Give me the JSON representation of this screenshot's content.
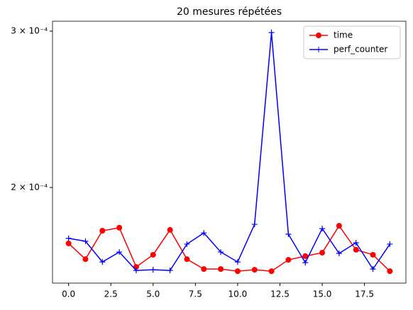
{
  "chart_data": {
    "type": "line",
    "title": "20 mesures répétées",
    "x": [
      0,
      1,
      2,
      3,
      4,
      5,
      6,
      7,
      8,
      9,
      10,
      11,
      12,
      13,
      14,
      15,
      16,
      17,
      18,
      19
    ],
    "series": [
      {
        "name": "time",
        "color": "#ff0000",
        "marker": "o",
        "values": [
          0.000173,
          0.0001661,
          0.0001788,
          0.0001802,
          0.0001628,
          0.000168,
          0.0001792,
          0.0001661,
          0.0001619,
          0.0001619,
          0.000161,
          0.0001616,
          0.000161,
          0.0001658,
          0.0001674,
          0.0001689,
          0.0001811,
          0.0001702,
          0.000168,
          0.000161
        ]
      },
      {
        "name": "perf_counter",
        "color": "#0000ff",
        "marker": "+",
        "values": [
          0.0001753,
          0.000174,
          0.0001649,
          0.0001692,
          0.0001613,
          0.0001616,
          0.0001613,
          0.0001727,
          0.0001778,
          0.0001692,
          0.0001649,
          0.0001818,
          0.0002989,
          0.0001772,
          0.0001646,
          0.0001798,
          0.0001686,
          0.0001733,
          0.0001619,
          0.0001727
        ]
      }
    ],
    "xlim": [
      -0.95,
      19.95
    ],
    "xticks": [
      {
        "value": 0,
        "label": "0.0"
      },
      {
        "value": 2.5,
        "label": "2.5"
      },
      {
        "value": 5,
        "label": "5.0"
      },
      {
        "value": 7.5,
        "label": "7.5"
      },
      {
        "value": 10,
        "label": "10.0"
      },
      {
        "value": 12.5,
        "label": "12.5"
      },
      {
        "value": 15,
        "label": "15.0"
      },
      {
        "value": 17.5,
        "label": "17.5"
      }
    ],
    "ylim": [
      0.0001561,
      0.0003078
    ],
    "yticks": [
      {
        "value": 0.0002,
        "label": "2 × 10⁻⁴"
      },
      {
        "value": 0.0003,
        "label": "3 × 10⁻⁴"
      }
    ],
    "log_y": true,
    "legend": "upper right"
  }
}
